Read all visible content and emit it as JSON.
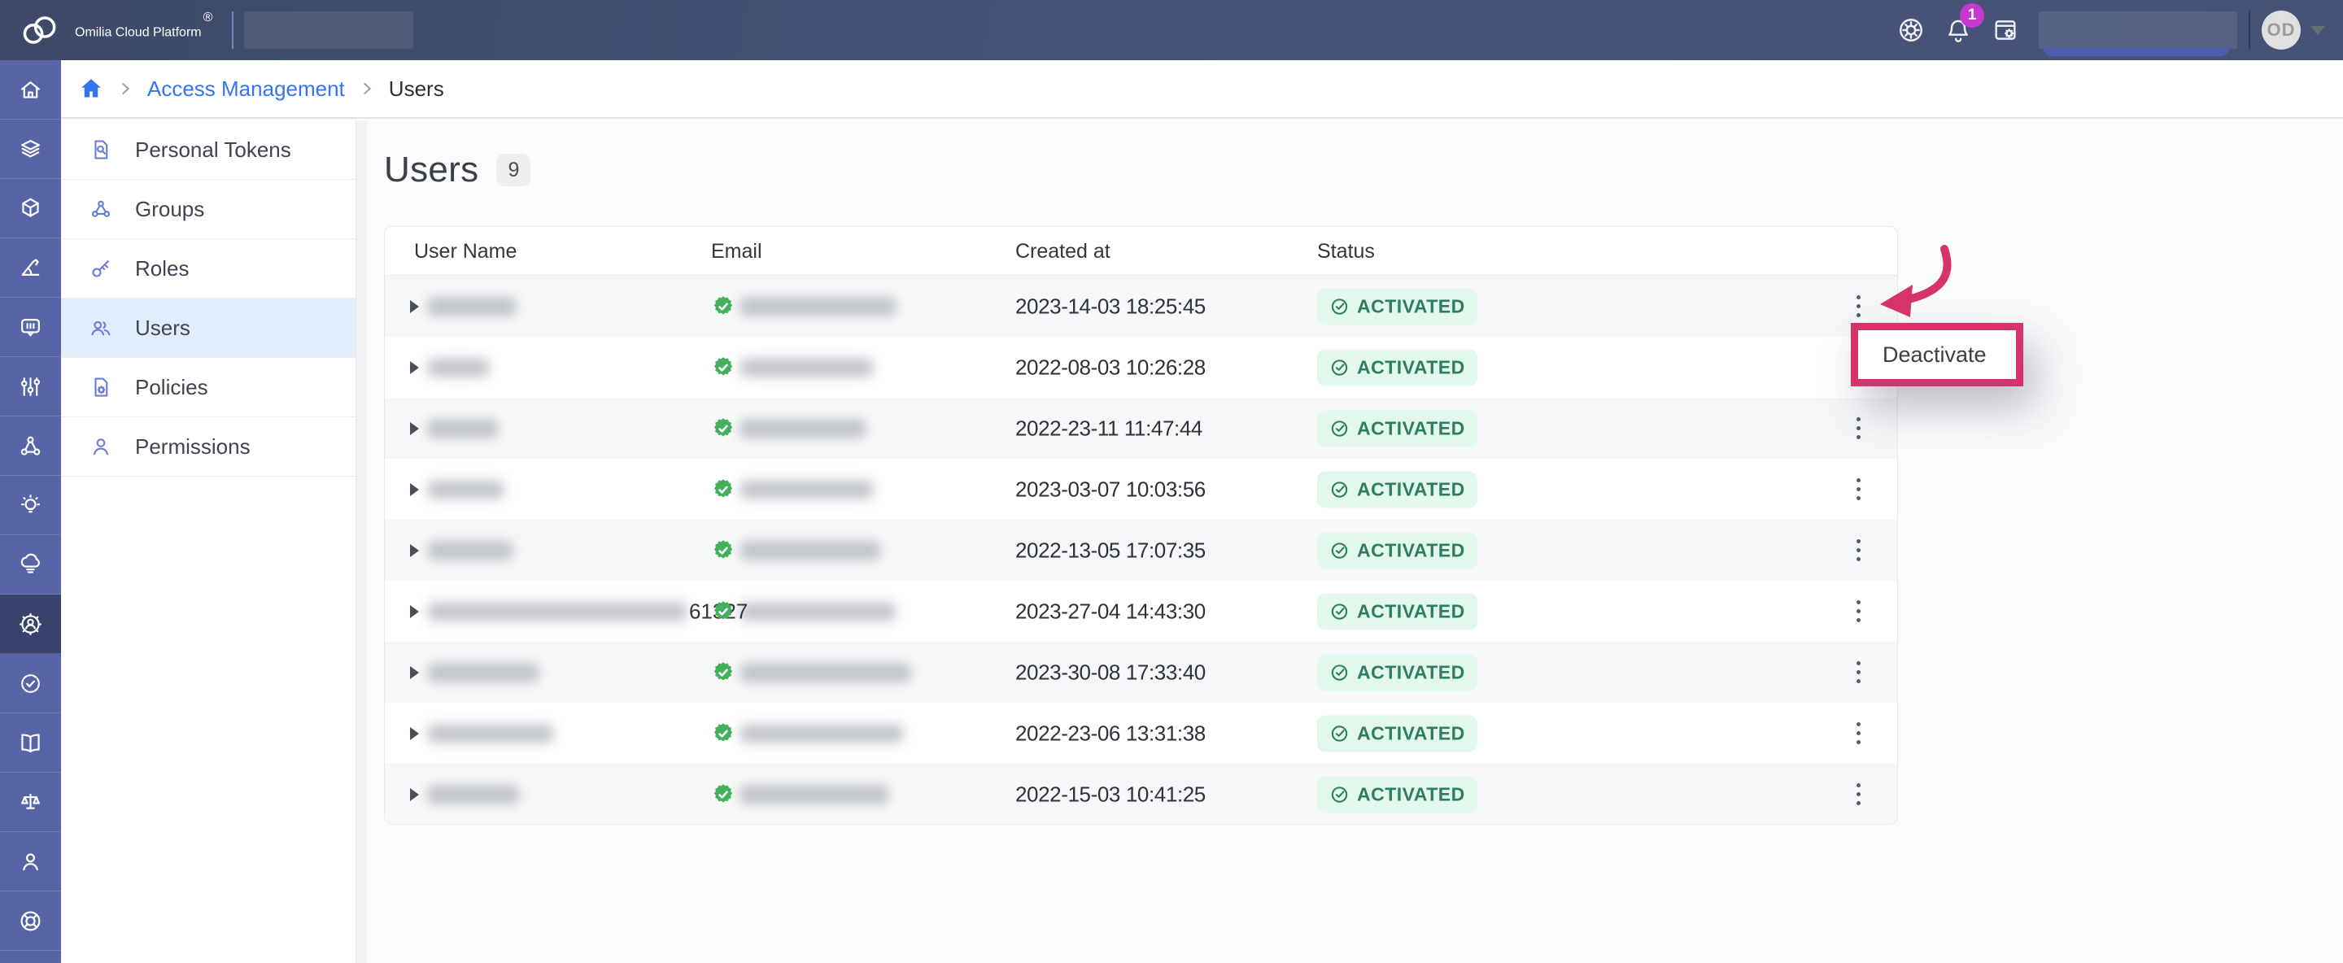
{
  "topbar": {
    "brand": "Omilia Cloud Platform",
    "reg": "®",
    "notification_count": "1",
    "avatar_initials": "OD",
    "icons": [
      "helm-icon",
      "bell-icon",
      "window-settings-icon"
    ]
  },
  "breadcrumb": {
    "items": [
      {
        "label": "Access Management",
        "type": "link"
      },
      {
        "label": "Users",
        "type": "current"
      }
    ]
  },
  "rail": {
    "active_index": 9,
    "icons": [
      "home",
      "layers",
      "cube",
      "protractor",
      "chat",
      "sliders",
      "network",
      "bulb",
      "cloud-stack",
      "gear-person",
      "badge-check",
      "book",
      "scales",
      "person",
      "life-ring"
    ]
  },
  "nav": {
    "items": [
      {
        "label": "Personal Tokens",
        "icon": "doc-search",
        "active": false
      },
      {
        "label": "Groups",
        "icon": "group-nodes",
        "active": false
      },
      {
        "label": "Roles",
        "icon": "key",
        "active": false
      },
      {
        "label": "Users",
        "icon": "users",
        "active": true
      },
      {
        "label": "Policies",
        "icon": "doc-gear",
        "active": false
      },
      {
        "label": "Permissions",
        "icon": "person",
        "active": false
      }
    ]
  },
  "page": {
    "title": "Users",
    "count": "9"
  },
  "table": {
    "headers": [
      "User Name",
      "Email",
      "Created at",
      "Status"
    ],
    "rows": [
      {
        "name_redacted_w": 110,
        "name_visible": "",
        "email_redacted_w": 193,
        "created": "2023-14-03 18:25:45",
        "status": "ACTIVATED"
      },
      {
        "name_redacted_w": 77,
        "name_visible": "",
        "email_redacted_w": 165,
        "created": "2022-08-03 10:26:28",
        "status": "ACTIVATED"
      },
      {
        "name_redacted_w": 88,
        "name_visible": "",
        "email_redacted_w": 156,
        "created": "2022-23-11 11:47:44",
        "status": "ACTIVATED"
      },
      {
        "name_redacted_w": 95,
        "name_visible": "",
        "email_redacted_w": 165,
        "created": "2023-03-07 10:03:56",
        "status": "ACTIVATED"
      },
      {
        "name_redacted_w": 106,
        "name_visible": "",
        "email_redacted_w": 174,
        "created": "2022-13-05 17:07:35",
        "status": "ACTIVATED"
      },
      {
        "name_redacted_w": 320,
        "name_visible": "61327",
        "email_redacted_w": 193,
        "created": "2023-27-04 14:43:30",
        "status": "ACTIVATED"
      },
      {
        "name_redacted_w": 138,
        "name_visible": "",
        "email_redacted_w": 211,
        "created": "2023-30-08 17:33:40",
        "status": "ACTIVATED"
      },
      {
        "name_redacted_w": 156,
        "name_visible": "",
        "email_redacted_w": 202,
        "created": "2022-23-06 13:31:38",
        "status": "ACTIVATED"
      },
      {
        "name_redacted_w": 114,
        "name_visible": "",
        "email_redacted_w": 184,
        "created": "2022-15-03 10:41:25",
        "status": "ACTIVATED"
      }
    ]
  },
  "annotation": {
    "menu_label": "Deactivate"
  },
  "colors": {
    "accent_pink": "#d6336c",
    "status_green_bg": "#e2f8ec",
    "status_green_text": "#2e7d63",
    "verified_green": "#43b05c",
    "link_blue": "#3574f0",
    "badge_purple": "#c43ad0",
    "rail_blue": "#5765a6",
    "rail_active": "#39426b"
  }
}
